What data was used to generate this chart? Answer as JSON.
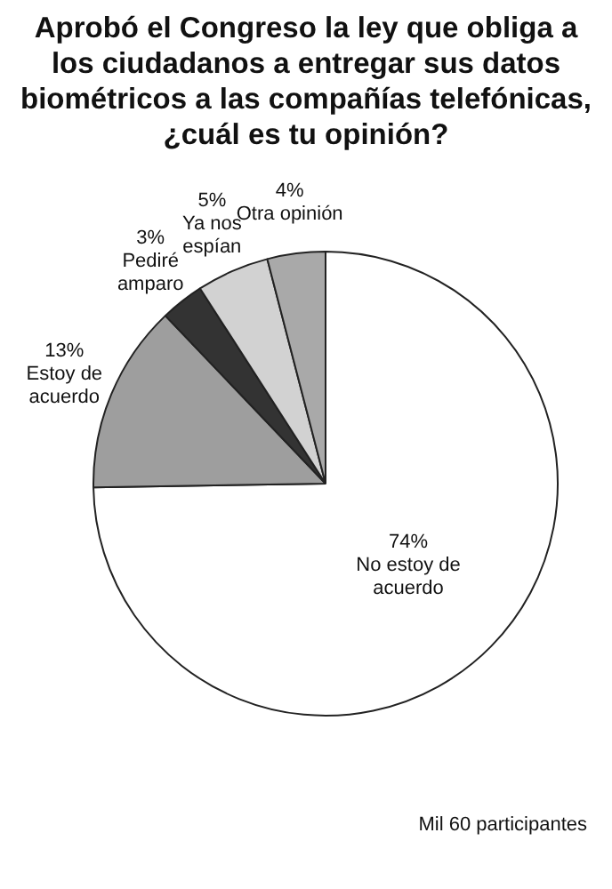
{
  "chart_data": {
    "type": "pie",
    "title": "Aprobó el Congreso la ley que obliga a los ciudadanos a entregar sus datos biométricos a las compañías telefónicas, ¿cuál es tu opinión?",
    "categories": [
      "No estoy de acuerdo",
      "Estoy de acuerdo",
      "Pediré amparo",
      "Ya nos espían",
      "Otra opinión"
    ],
    "values": [
      74,
      13,
      3,
      5,
      4
    ],
    "value_labels": [
      "74%",
      "13%",
      "3%",
      "5%",
      "4%"
    ],
    "colors": [
      "#ffffff",
      "#9e9e9e",
      "#333333",
      "#d2d2d2",
      "#a9a9a9"
    ],
    "legend": false,
    "annotations": [
      "Mil 60 participantes"
    ]
  }
}
